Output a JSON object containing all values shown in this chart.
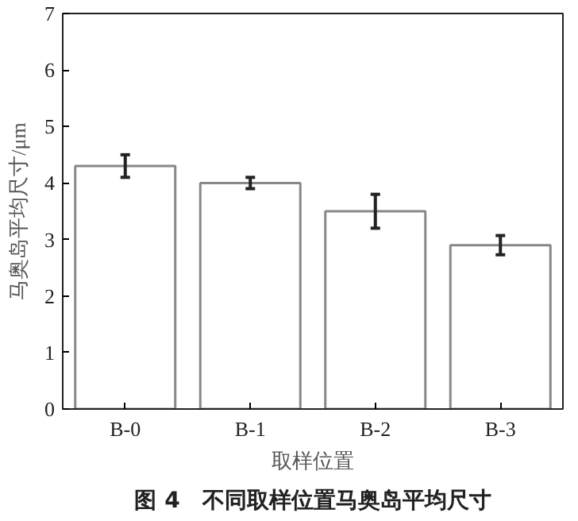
{
  "chart_data": {
    "type": "bar",
    "title": "图 4　不同取样位置马奥岛平均尺寸",
    "xlabel": "取样位置",
    "ylabel": "马奥岛平均尺寸/μm",
    "categories": [
      "B-0",
      "B-1",
      "B-2",
      "B-3"
    ],
    "values": [
      4.3,
      4.0,
      3.5,
      2.9
    ],
    "errors": [
      0.2,
      0.1,
      0.3,
      0.17
    ],
    "color": "#ffffff",
    "ylim": [
      0,
      7
    ],
    "yticks": [
      0,
      1,
      2,
      3,
      4,
      5,
      6,
      7
    ],
    "grid": false
  }
}
